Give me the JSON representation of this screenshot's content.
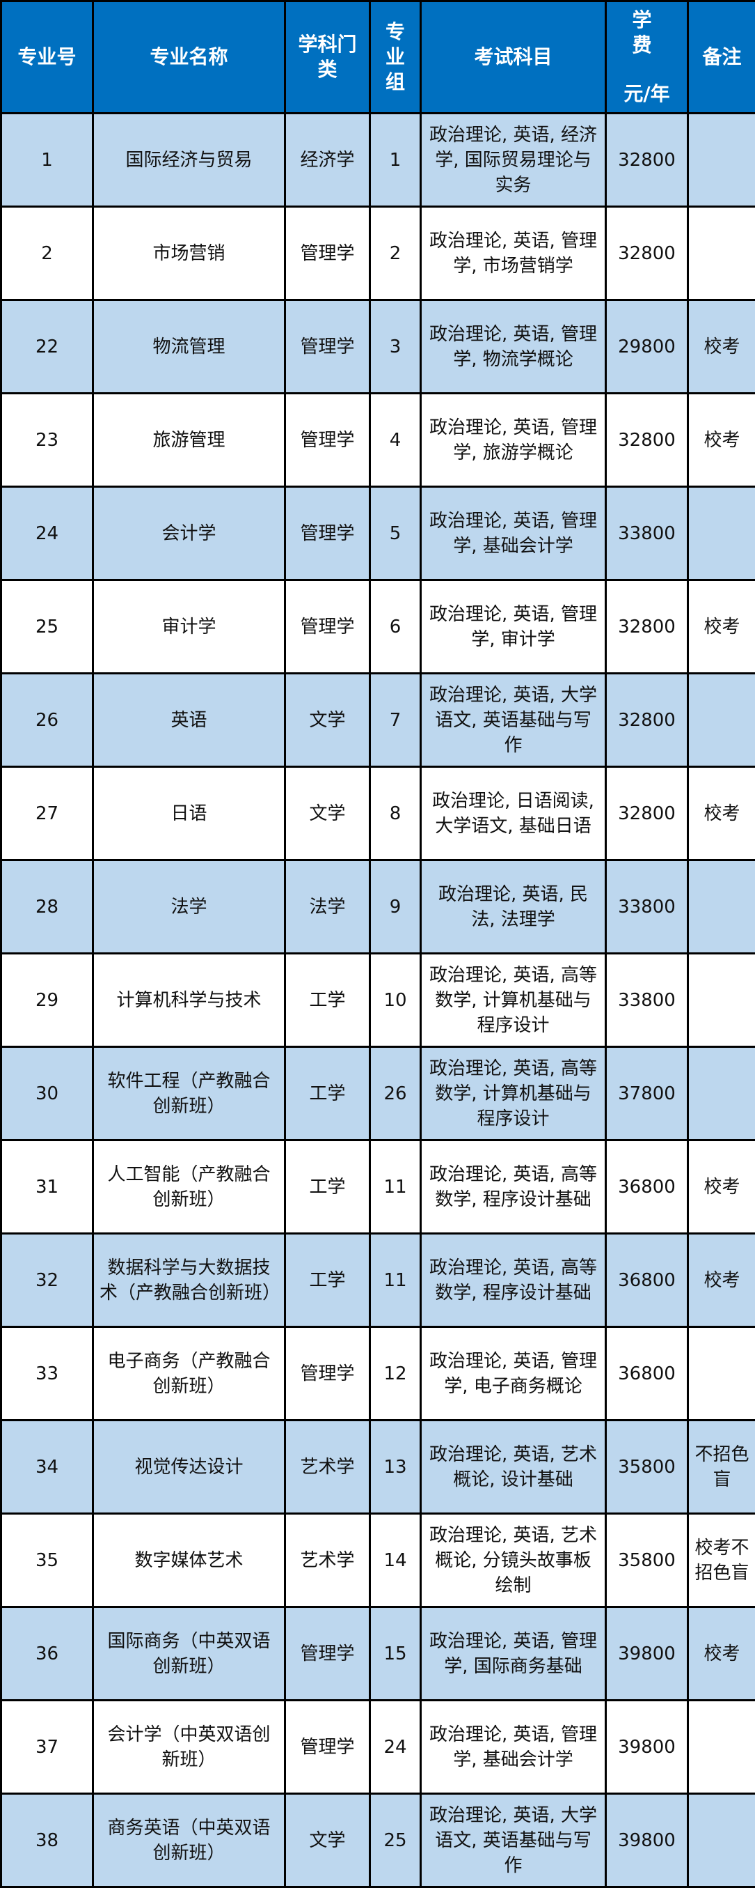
{
  "colors": {
    "header_bg": "#0070C0",
    "row_alt_bg": "#BDD7EE",
    "row_bg": "#FFFFFF"
  },
  "headers": {
    "code": "专业号",
    "name": "专业名称",
    "category": "学科门类",
    "group": "专业组",
    "exam": "考试科目",
    "fee_line1": "学 费",
    "fee_line2": "元/年",
    "note": "备注"
  },
  "rows": [
    {
      "code": "1",
      "name": "国际经济与贸易",
      "category": "经济学",
      "group": "1",
      "exam": "政治理论, 英语, 经济学, 国际贸易理论与实务",
      "fee": "32800",
      "note": ""
    },
    {
      "code": "2",
      "name": "市场营销",
      "category": "管理学",
      "group": "2",
      "exam": "政治理论, 英语, 管理学, 市场营销学",
      "fee": "32800",
      "note": ""
    },
    {
      "code": "22",
      "name": "物流管理",
      "category": "管理学",
      "group": "3",
      "exam": "政治理论, 英语, 管理学, 物流学概论",
      "fee": "29800",
      "note": "校考"
    },
    {
      "code": "23",
      "name": "旅游管理",
      "category": "管理学",
      "group": "4",
      "exam": "政治理论, 英语, 管理学, 旅游学概论",
      "fee": "32800",
      "note": "校考"
    },
    {
      "code": "24",
      "name": "会计学",
      "category": "管理学",
      "group": "5",
      "exam": "政治理论, 英语, 管理学, 基础会计学",
      "fee": "33800",
      "note": ""
    },
    {
      "code": "25",
      "name": "审计学",
      "category": "管理学",
      "group": "6",
      "exam": "政治理论, 英语, 管理学, 审计学",
      "fee": "32800",
      "note": "校考"
    },
    {
      "code": "26",
      "name": "英语",
      "category": "文学",
      "group": "7",
      "exam": "政治理论, 英语, 大学语文, 英语基础与写作",
      "fee": "32800",
      "note": ""
    },
    {
      "code": "27",
      "name": "日语",
      "category": "文学",
      "group": "8",
      "exam": "政治理论, 日语阅读, 大学语文, 基础日语",
      "fee": "32800",
      "note": "校考"
    },
    {
      "code": "28",
      "name": "法学",
      "category": "法学",
      "group": "9",
      "exam": "政治理论, 英语, 民法, 法理学",
      "fee": "33800",
      "note": ""
    },
    {
      "code": "29",
      "name": "计算机科学与技术",
      "category": "工学",
      "group": "10",
      "exam": "政治理论, 英语, 高等数学, 计算机基础与程序设计",
      "fee": "33800",
      "note": ""
    },
    {
      "code": "30",
      "name": "软件工程（产教融合创新班）",
      "category": "工学",
      "group": "26",
      "exam": "政治理论, 英语, 高等数学, 计算机基础与程序设计",
      "fee": "37800",
      "note": ""
    },
    {
      "code": "31",
      "name": "人工智能（产教融合创新班）",
      "category": "工学",
      "group": "11",
      "exam": "政治理论, 英语, 高等数学, 程序设计基础",
      "fee": "36800",
      "note": "校考"
    },
    {
      "code": "32",
      "name": "数据科学与大数据技术（产教融合创新班）",
      "category": "工学",
      "group": "11",
      "exam": "政治理论, 英语, 高等数学, 程序设计基础",
      "fee": "36800",
      "note": "校考"
    },
    {
      "code": "33",
      "name": "电子商务（产教融合创新班）",
      "category": "管理学",
      "group": "12",
      "exam": "政治理论, 英语, 管理学, 电子商务概论",
      "fee": "36800",
      "note": ""
    },
    {
      "code": "34",
      "name": "视觉传达设计",
      "category": "艺术学",
      "group": "13",
      "exam": "政治理论, 英语, 艺术概论, 设计基础",
      "fee": "35800",
      "note": "不招色盲"
    },
    {
      "code": "35",
      "name": "数字媒体艺术",
      "category": "艺术学",
      "group": "14",
      "exam": "政治理论, 英语, 艺术概论, 分镜头故事板绘制",
      "fee": "35800",
      "note": "校考不招色盲"
    },
    {
      "code": "36",
      "name": "国际商务（中英双语创新班）",
      "category": "管理学",
      "group": "15",
      "exam": "政治理论, 英语, 管理学, 国际商务基础",
      "fee": "39800",
      "note": "校考"
    },
    {
      "code": "37",
      "name": "会计学（中英双语创新班）",
      "category": "管理学",
      "group": "24",
      "exam": "政治理论, 英语, 管理学, 基础会计学",
      "fee": "39800",
      "note": ""
    },
    {
      "code": "38",
      "name": "商务英语（中英双语创新班）",
      "category": "文学",
      "group": "25",
      "exam": "政治理论, 英语, 大学语文, 英语基础与写作",
      "fee": "39800",
      "note": ""
    }
  ]
}
